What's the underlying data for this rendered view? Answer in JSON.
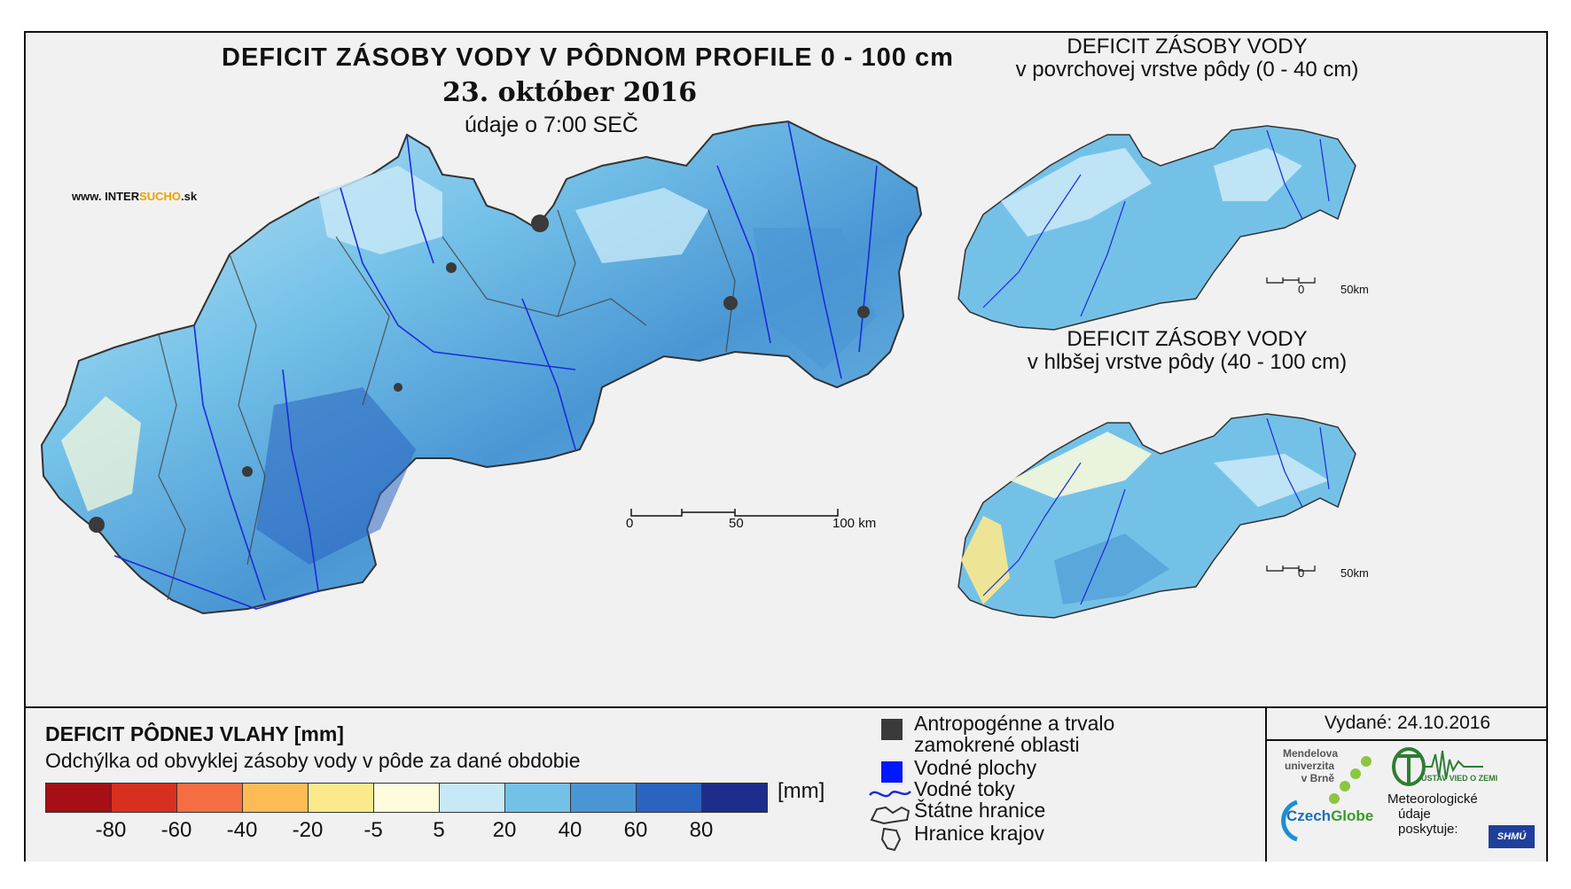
{
  "main_map": {
    "title": "DEFICIT ZÁSOBY VODY V PÔDNOM PROFILE 0 - 100 cm",
    "date": "23. október 2016",
    "time_note": "údaje o 7:00 SEČ",
    "website": {
      "prefix": "www. INTER",
      "highlight": "SUCHO",
      "suffix": ".sk"
    },
    "scale_labels": [
      "0",
      "50",
      "100 km"
    ]
  },
  "inset_top": {
    "title_line1": "DEFICIT ZÁSOBY VODY",
    "title_line2": "v povrchovej vrstve pôdy (0 - 40 cm)",
    "scale_labels": [
      "0",
      "50km"
    ]
  },
  "inset_bottom": {
    "title_line1": "DEFICIT ZÁSOBY VODY",
    "title_line2": "v hlbšej vrstve pôdy (40 - 100 cm)",
    "scale_labels": [
      "0",
      "50km"
    ]
  },
  "legend": {
    "title": "DEFICIT PÔDNEJ VLAHY [mm]",
    "subtitle": "Odchýlka od obvyklej zásoby vody v pôde za dané obdobie",
    "colors": [
      "#a50f15",
      "#d7301f",
      "#f46d43",
      "#fdbb55",
      "#fbe98c",
      "#fefcdc",
      "#c6e8f7",
      "#74c1e8",
      "#4a96d4",
      "#2a64c0",
      "#1e2d8c"
    ],
    "ticks": [
      "-80",
      "-60",
      "-40",
      "-20",
      "-5",
      "5",
      "20",
      "40",
      "60",
      "80"
    ],
    "unit": "[mm]",
    "symbols": [
      {
        "label": "Antropogénne a trvalo",
        "label2": "zamokrené oblasti",
        "color": "#3a3a3a"
      },
      {
        "label": "Vodné plochy",
        "color": "#0018ff"
      },
      {
        "label": "Vodné toky",
        "color": "#1a2cd8"
      },
      {
        "label": "Štátne hranice",
        "color": "#333333"
      },
      {
        "label": "Hranice krajov",
        "color": "#333333"
      }
    ]
  },
  "issued": {
    "label": "Vydané: 24.10.2016",
    "mendel_line1": "Mendelova",
    "mendel_line2": "univerzita",
    "mendel_line3": "v Brně",
    "czechglobe_a": "Czech",
    "czechglobe_b": "Globe",
    "ustav": "ÚSTAV VIED O ZEMI",
    "meteo_line1": "Meteorologické",
    "meteo_line2": "údaje",
    "meteo_line3": "poskytuje:",
    "shmu": "SHMÚ"
  }
}
